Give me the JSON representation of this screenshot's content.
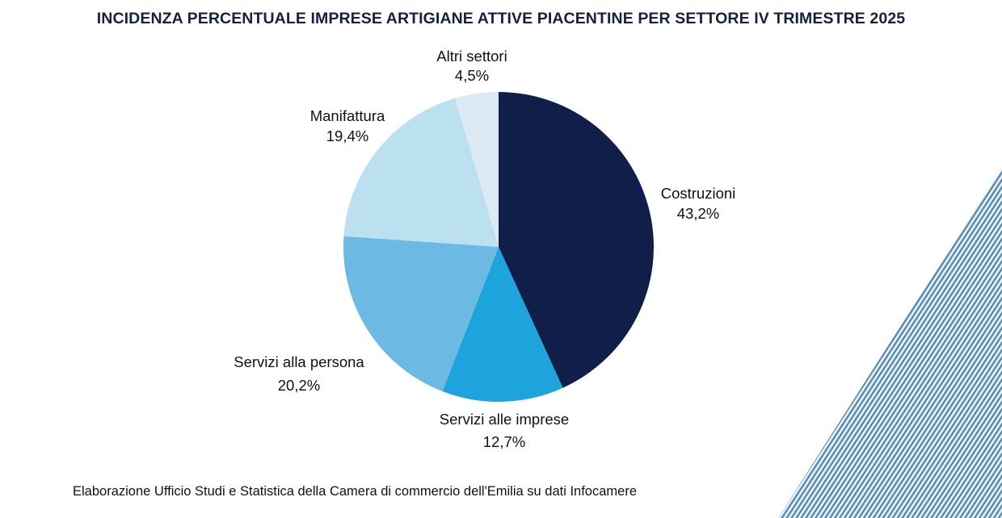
{
  "chart_data": {
    "type": "pie",
    "title": "INCIDENZA PERCENTUALE IMPRESE ARTIGIANE ATTIVE PIACENTINE PER SETTORE IV TRIMESTRE 2025",
    "start": "12 o'clock, clockwise",
    "slices": [
      {
        "label": "Costruzioni",
        "value": 43.2,
        "value_label": "43,2%",
        "color": "#0f1f4a"
      },
      {
        "label": "Servizi alle imprese",
        "value": 12.7,
        "value_label": "12,7%",
        "color": "#1ea4dc"
      },
      {
        "label": "Servizi alla persona",
        "value": 20.2,
        "value_label": "20,2%",
        "color": "#6cb9e4"
      },
      {
        "label": "Manifattura",
        "value": 19.4,
        "value_label": "19,4%",
        "color": "#bbe0f0"
      },
      {
        "label": "Altri settori",
        "value": 4.5,
        "value_label": "4,5%",
        "color": "#dce9f2"
      }
    ],
    "source": "Elaborazione Ufficio Studi e Statistica della Camera di commercio dell'Emilia su dati Infocamere"
  },
  "decoration": {
    "stripe_color": "#5b86ad",
    "stripe_bg": "#d9eef8"
  }
}
